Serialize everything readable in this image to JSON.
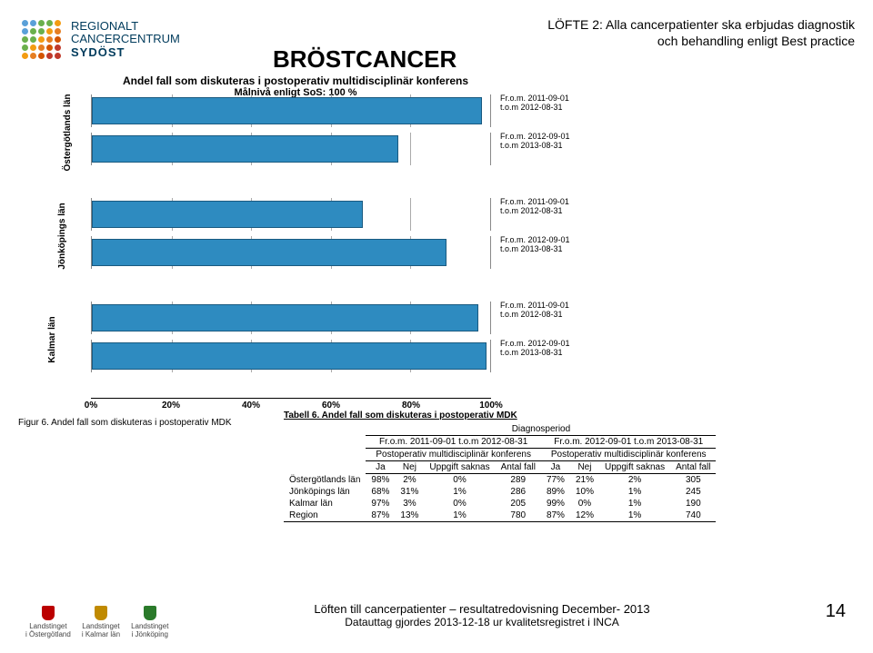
{
  "logo": {
    "line1": "REGIONALT",
    "line2": "CANCERCENTRUM",
    "line3": "SYDÖST"
  },
  "logo_dot_colors": [
    "#5aa0d8",
    "#5aa0d8",
    "#6ab04c",
    "#6ab04c",
    "#f39c12",
    "#5aa0d8",
    "#6ab04c",
    "#6ab04c",
    "#f39c12",
    "#e67e22",
    "#6ab04c",
    "#6ab04c",
    "#f39c12",
    "#e67e22",
    "#d35400",
    "#6ab04c",
    "#f39c12",
    "#e67e22",
    "#d35400",
    "#c0392b",
    "#f39c12",
    "#e67e22",
    "#d35400",
    "#c0392b",
    "#c0392b"
  ],
  "main_title": "BRÖSTCANCER",
  "subtitle_l1": "LÖFTE 2: Alla cancerpatienter ska erbjudas diagnostik",
  "subtitle_l2": "och behandling enligt Best practice",
  "chart_title": "Andel fall som diskuteras i postoperativ multidisciplinär konferens",
  "chart_subtitle": "Målnivå enligt SoS: 100 %",
  "period_a_l1": "Fr.o.m. 2011-09-01",
  "period_a_l2": "t.o.m 2012-08-31",
  "period_b_l1": "Fr.o.m. 2012-09-01",
  "period_b_l2": "t.o.m 2013-08-31",
  "regions": {
    "r1": {
      "name": "Östergötlands län",
      "bar_a": 98,
      "bar_b": 77
    },
    "r2": {
      "name": "Jönköpings län",
      "bar_a": 68,
      "bar_b": 89
    },
    "r3": {
      "name": "Kalmar län",
      "bar_a": 97,
      "bar_b": 99
    }
  },
  "bar_color": "#2e8bc0",
  "axis_ticks": {
    "t0": "0%",
    "t20": "20%",
    "t40": "40%",
    "t60": "60%",
    "t80": "80%",
    "t100": "100%"
  },
  "fig_caption": "Figur 6. Andel fall som diskuteras i postoperativ MDK",
  "tab_caption": "Tabell 6. Andel fall som diskuteras i postoperativ MDK",
  "table": {
    "diag_header": "Diagnosperiod",
    "p1": "Fr.o.m. 2011-09-01 t.o.m 2012-08-31",
    "p2": "Fr.o.m. 2012-09-01 t.o.m 2013-08-31",
    "subhead": "Postoperativ multidisciplinär konferens",
    "cols": {
      "ja": "Ja",
      "nej": "Nej",
      "us": "Uppgift saknas",
      "af": "Antal fall"
    },
    "rows": {
      "r1": {
        "name": "Östergötlands län",
        "ja1": "98%",
        "nej1": "2%",
        "us1": "0%",
        "af1": "289",
        "ja2": "77%",
        "nej2": "21%",
        "us2": "2%",
        "af2": "305"
      },
      "r2": {
        "name": "Jönköpings län",
        "ja1": "68%",
        "nej1": "31%",
        "us1": "1%",
        "af1": "286",
        "ja2": "89%",
        "nej2": "10%",
        "us2": "1%",
        "af2": "245"
      },
      "r3": {
        "name": "Kalmar län",
        "ja1": "97%",
        "nej1": "3%",
        "us1": "0%",
        "af1": "205",
        "ja2": "99%",
        "nej2": "0%",
        "us2": "1%",
        "af2": "190"
      },
      "r4": {
        "name": "Region",
        "ja1": "87%",
        "nej1": "13%",
        "us1": "1%",
        "af1": "780",
        "ja2": "87%",
        "nej2": "12%",
        "us2": "1%",
        "af2": "740"
      }
    }
  },
  "footer": {
    "logos": {
      "l1": "Landstinget",
      "l1b": "i Östergötland",
      "l2": "Landstinget",
      "l2b": "i Kalmar län",
      "l3": "Landstinget",
      "l3b": "i Jönköping"
    },
    "line1": "Löften till cancerpatienter – resultatredovisning December- 2013",
    "line2": "Datauttag gjordes 2013-12-18 ur kvalitetsregistret i INCA",
    "page": "14"
  }
}
